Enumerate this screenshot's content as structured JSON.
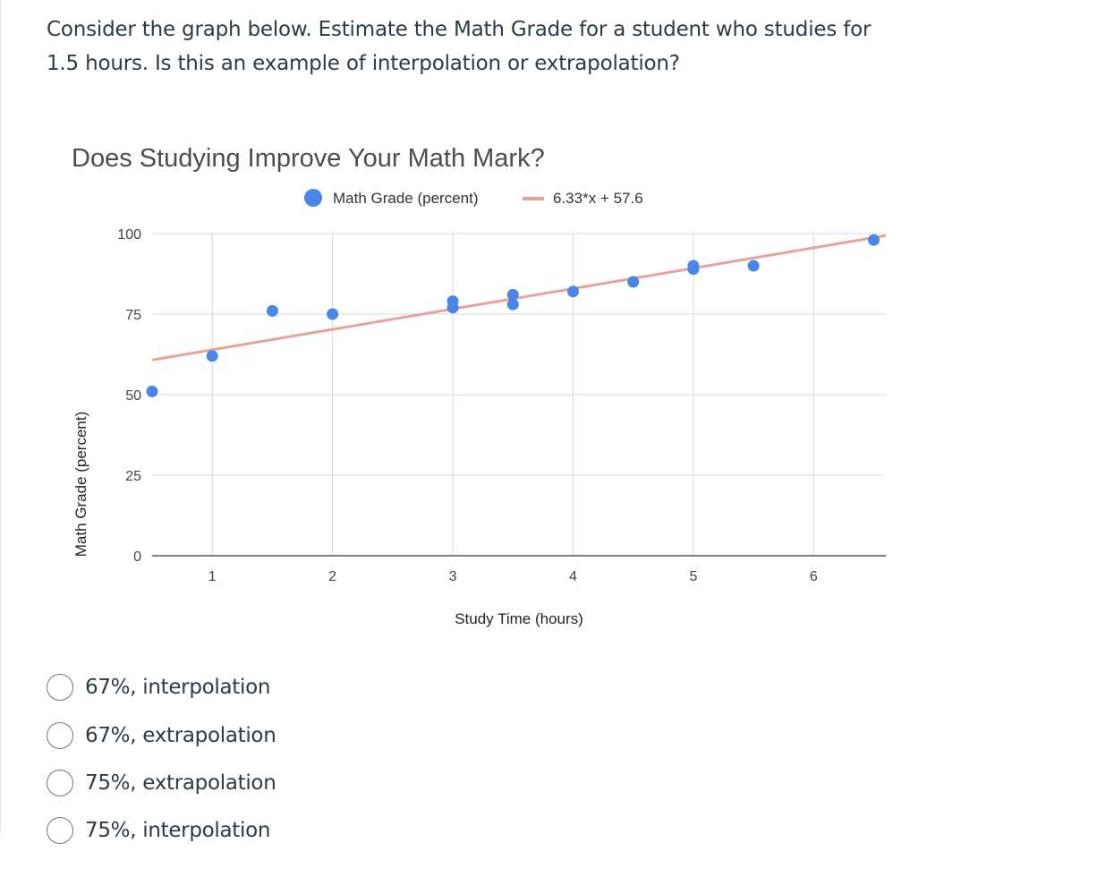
{
  "question": {
    "line1": "Consider the graph below. Estimate the Math Grade for a student who studies for",
    "line2": "1.5 hours. Is this an example of interpolation or extrapolation?"
  },
  "chart_data": {
    "type": "scatter",
    "title": "Does Studying Improve Your Math Mark?",
    "xlabel": "Study Time (hours)",
    "ylabel": "Math Grade (percent)",
    "xlim": [
      0.5,
      6.6
    ],
    "ylim": [
      0,
      100
    ],
    "x_ticks": [
      "1",
      "2",
      "3",
      "4",
      "5",
      "6"
    ],
    "y_ticks": [
      "0",
      "25",
      "50",
      "75",
      "100"
    ],
    "grid": true,
    "legend_position": "top",
    "series": [
      {
        "name": "Math Grade (percent)",
        "color": "#4a86e8",
        "x": [
          0.5,
          1,
          1.5,
          2,
          3,
          3,
          3.5,
          3.5,
          4,
          4.5,
          5,
          5,
          5.5,
          6.5
        ],
        "y": [
          51,
          62,
          76,
          75,
          79,
          77,
          81,
          78,
          82,
          85,
          90,
          89,
          90,
          98
        ]
      }
    ],
    "trendline": {
      "name": "6.33*x + 57.6",
      "color": "#e6a29c",
      "slope": 6.33,
      "intercept": 57.6
    }
  },
  "answers": [
    {
      "label": "67%, interpolation"
    },
    {
      "label": "67%, extrapolation"
    },
    {
      "label": "75%, extrapolation"
    },
    {
      "label": "75%, interpolation"
    }
  ]
}
